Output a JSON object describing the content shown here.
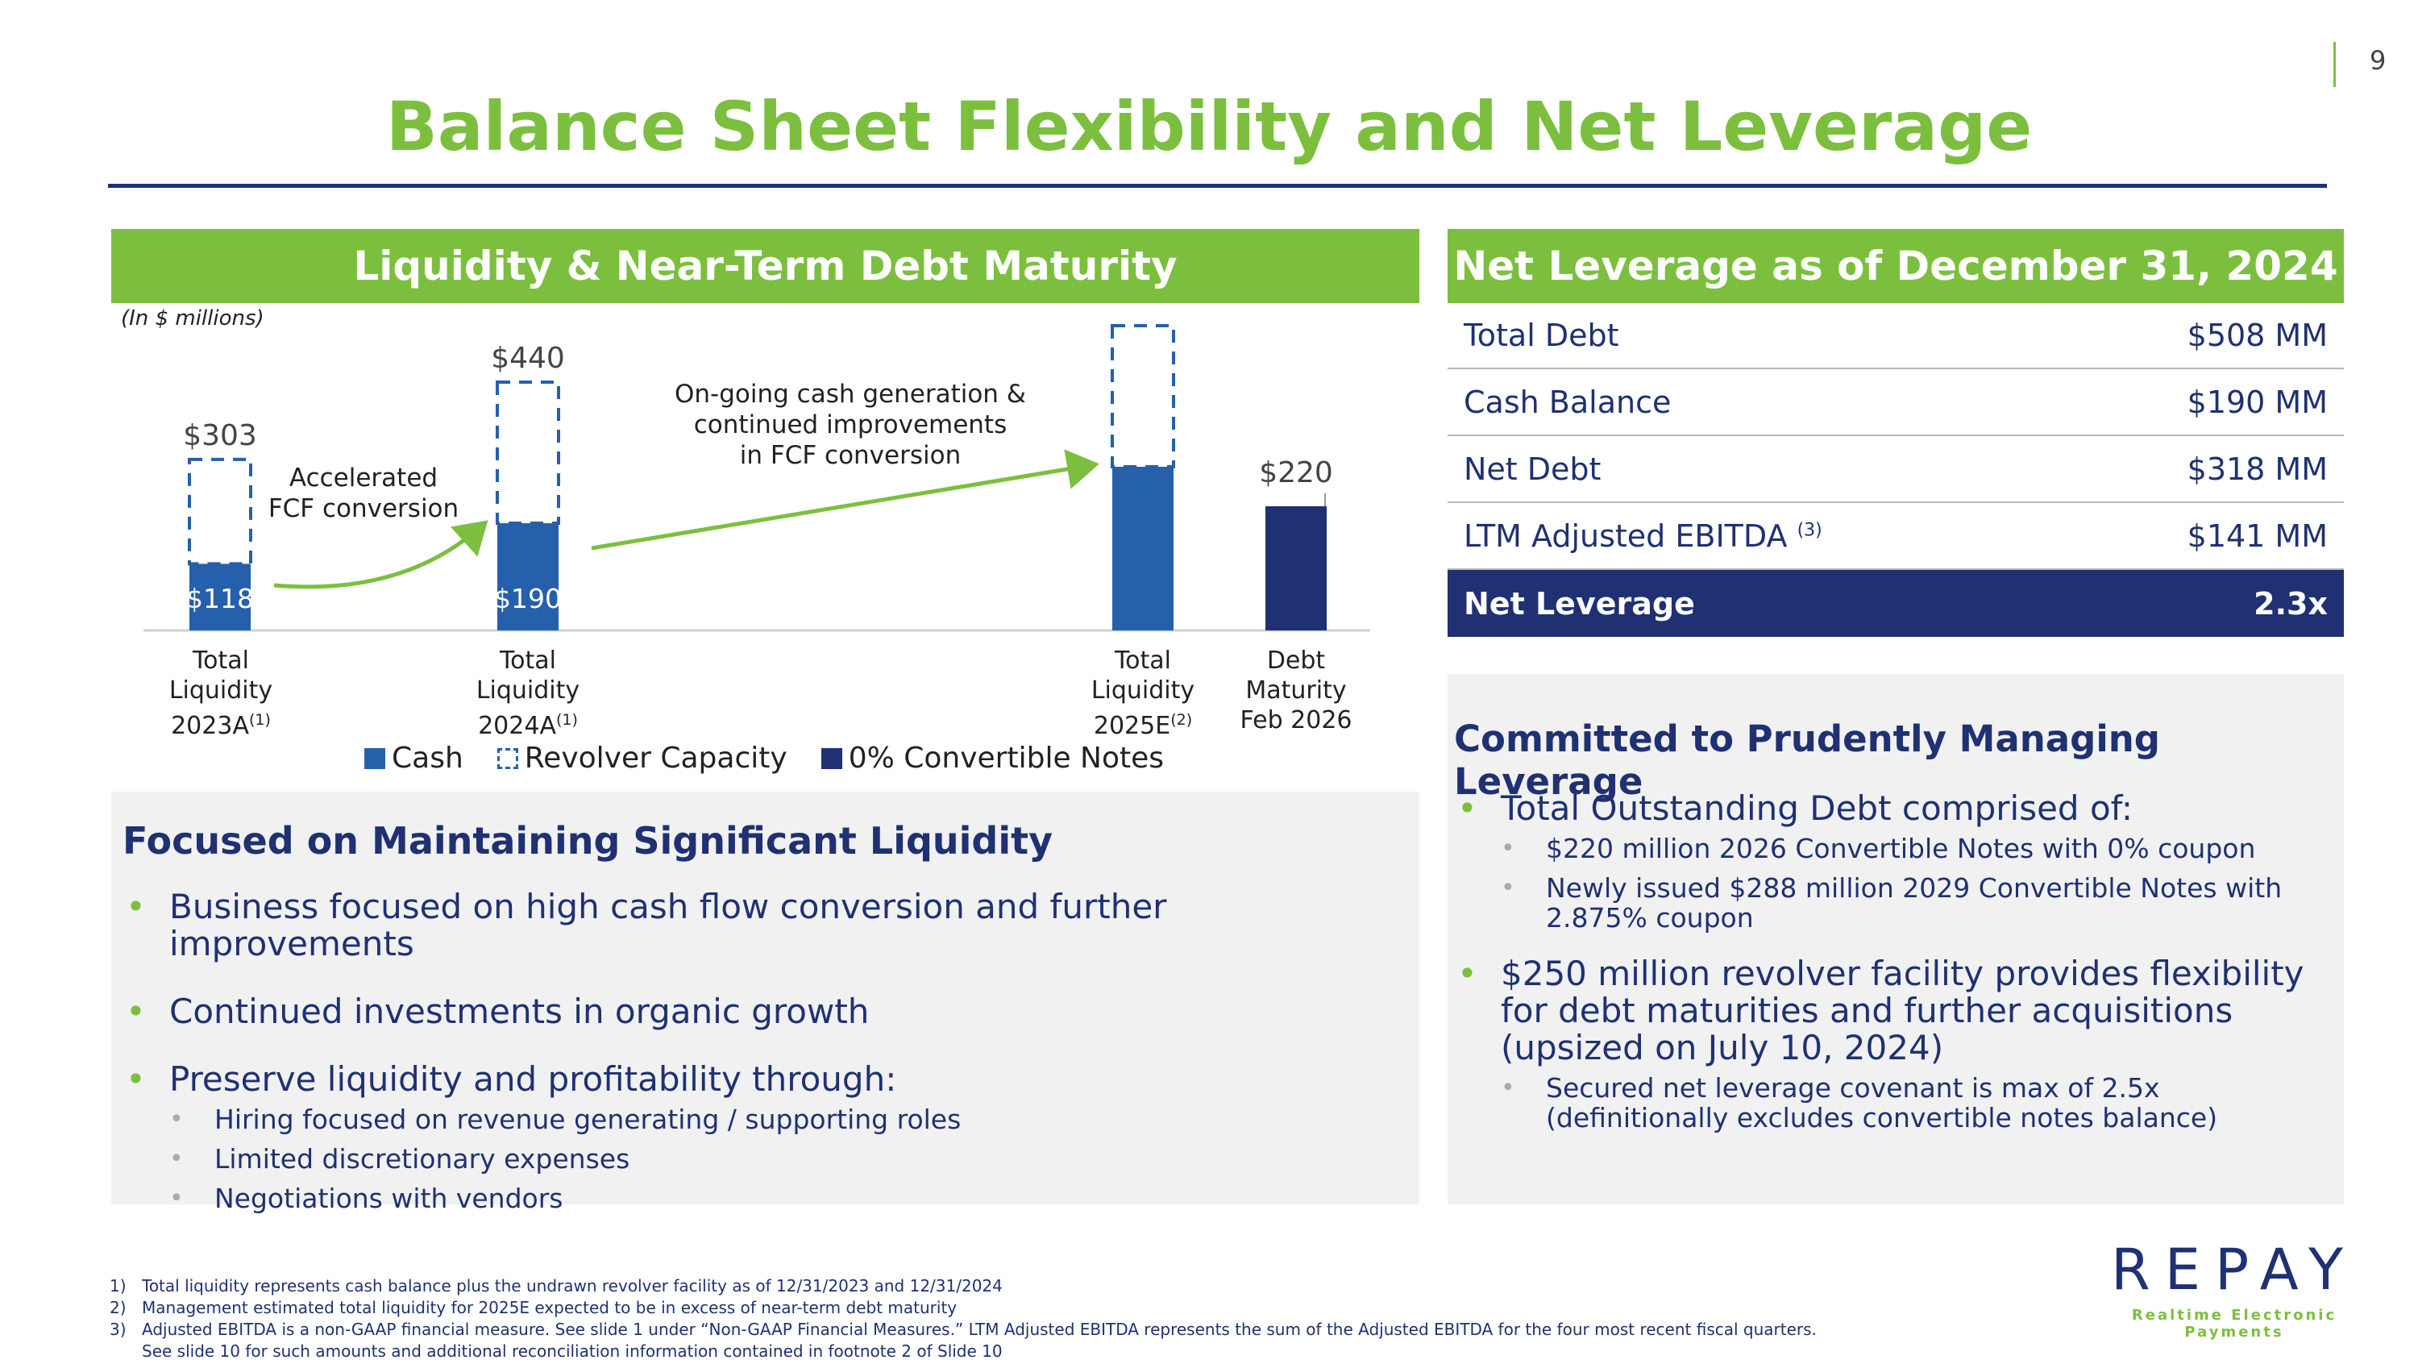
{
  "page_number": "9",
  "title": "Balance Sheet Flexibility and Net Leverage",
  "left_panel": {
    "header": "Liquidity & Near-Term Debt Maturity",
    "units_note": "(In $ millions)",
    "annotations": {
      "accelerated_line1": "Accelerated",
      "accelerated_line2": "FCF conversion",
      "ongoing_line1": "On-going cash generation &",
      "ongoing_line2": "continued improvements",
      "ongoing_line3": "in FCF conversion"
    },
    "categories": [
      {
        "line1": "Total",
        "line2": "Liquidity",
        "line3": "2023A",
        "sup": "(1)"
      },
      {
        "line1": "Total",
        "line2": "Liquidity",
        "line3": "2024A",
        "sup": "(1)"
      },
      {
        "line1": "Total",
        "line2": "Liquidity",
        "line3": "2025E",
        "sup": "(2)"
      },
      {
        "line1": "Debt",
        "line2": "Maturity",
        "line3": "Feb 2026",
        "sup": ""
      }
    ],
    "legend": {
      "cash": "Cash",
      "revolver": "Revolver Capacity",
      "convertible": "0% Convertible Notes"
    }
  },
  "chart_data": {
    "type": "bar",
    "stacked": true,
    "categories": [
      "Total Liquidity 2023A",
      "Total Liquidity 2024A",
      "Total Liquidity 2025E",
      "Debt Maturity Feb 2026"
    ],
    "series": [
      {
        "name": "Cash",
        "values": [
          118,
          190,
          290,
          null
        ],
        "labels": [
          "$118",
          "$190",
          "",
          ""
        ],
        "color": "#2660ac",
        "style": "solid"
      },
      {
        "name": "Revolver Capacity",
        "values": [
          185,
          250,
          250,
          null
        ],
        "labels": [
          "",
          "",
          "",
          ""
        ],
        "color": "#2660ac",
        "style": "dashed"
      },
      {
        "name": "0% Convertible Notes",
        "values": [
          null,
          null,
          null,
          220
        ],
        "labels": [
          "",
          "",
          "",
          ""
        ],
        "color": "#1f3172",
        "style": "solid"
      }
    ],
    "totals": [
      "$303",
      "$440",
      "",
      "$220"
    ],
    "ylim": [
      0,
      540
    ],
    "grid": false,
    "legend_position": "bottom",
    "units": "(In $ millions)"
  },
  "focus_panel": {
    "heading": "Focused on Maintaining Significant Liquidity",
    "bullets": [
      "Business focused on high cash flow conversion and further improvements",
      "Continued investments in organic growth",
      "Preserve liquidity and profitability through:"
    ],
    "sub_bullets": [
      "Hiring focused on revenue generating / supporting roles",
      "Limited discretionary expenses",
      "Negotiations with vendors"
    ]
  },
  "right_panel": {
    "header": "Net Leverage as of December 31, 2024",
    "rows": [
      {
        "label": "Total Debt",
        "sup": "",
        "value": "$508 MM"
      },
      {
        "label": "Cash Balance",
        "sup": "",
        "value": "$190 MM"
      },
      {
        "label": "Net Debt",
        "sup": "",
        "value": "$318 MM"
      },
      {
        "label": "LTM Adjusted EBITDA",
        "sup": "(3)",
        "value": "$141 MM"
      }
    ],
    "total_row": {
      "label": "Net Leverage",
      "value": "2.3x"
    }
  },
  "committed_panel": {
    "heading": "Committed to Prudently Managing Leverage",
    "bullet1": "Total Outstanding Debt comprised of:",
    "bullet1_subs": [
      "$220 million 2026 Convertible Notes with 0% coupon",
      "Newly issued $288 million 2029 Convertible Notes with 2.875% coupon"
    ],
    "bullet2": "$250 million revolver facility provides flexibility for debt maturities and further acquisitions (upsized on July 10, 2024)",
    "bullet2_subs": [
      "Secured net leverage covenant is max of 2.5x (definitionally excludes convertible notes balance)"
    ]
  },
  "footnotes": [
    {
      "num": "1)",
      "text": "Total liquidity represents cash balance plus the undrawn revolver facility as of 12/31/2023 and 12/31/2024"
    },
    {
      "num": "2)",
      "text": "Management estimated total liquidity for 2025E expected to be in excess of near-term debt maturity"
    },
    {
      "num": "3)",
      "text": "Adjusted EBITDA is a non-GAAP financial measure.  See slide 1 under “Non-GAAP Financial Measures.”  LTM Adjusted EBITDA represents the sum of the Adjusted EBITDA for the four most recent fiscal quarters."
    }
  ],
  "footnote_continuation": "See slide 10 for such amounts and additional reconciliation information contained in footnote 2 of Slide 10",
  "logo": {
    "word": "REPAY",
    "tagline": "Realtime Electronic Payments"
  },
  "colors": {
    "green": "#7cbf3f",
    "navy": "#1f3172",
    "blue": "#2660ac",
    "panel_grey": "#f1f1f1"
  }
}
